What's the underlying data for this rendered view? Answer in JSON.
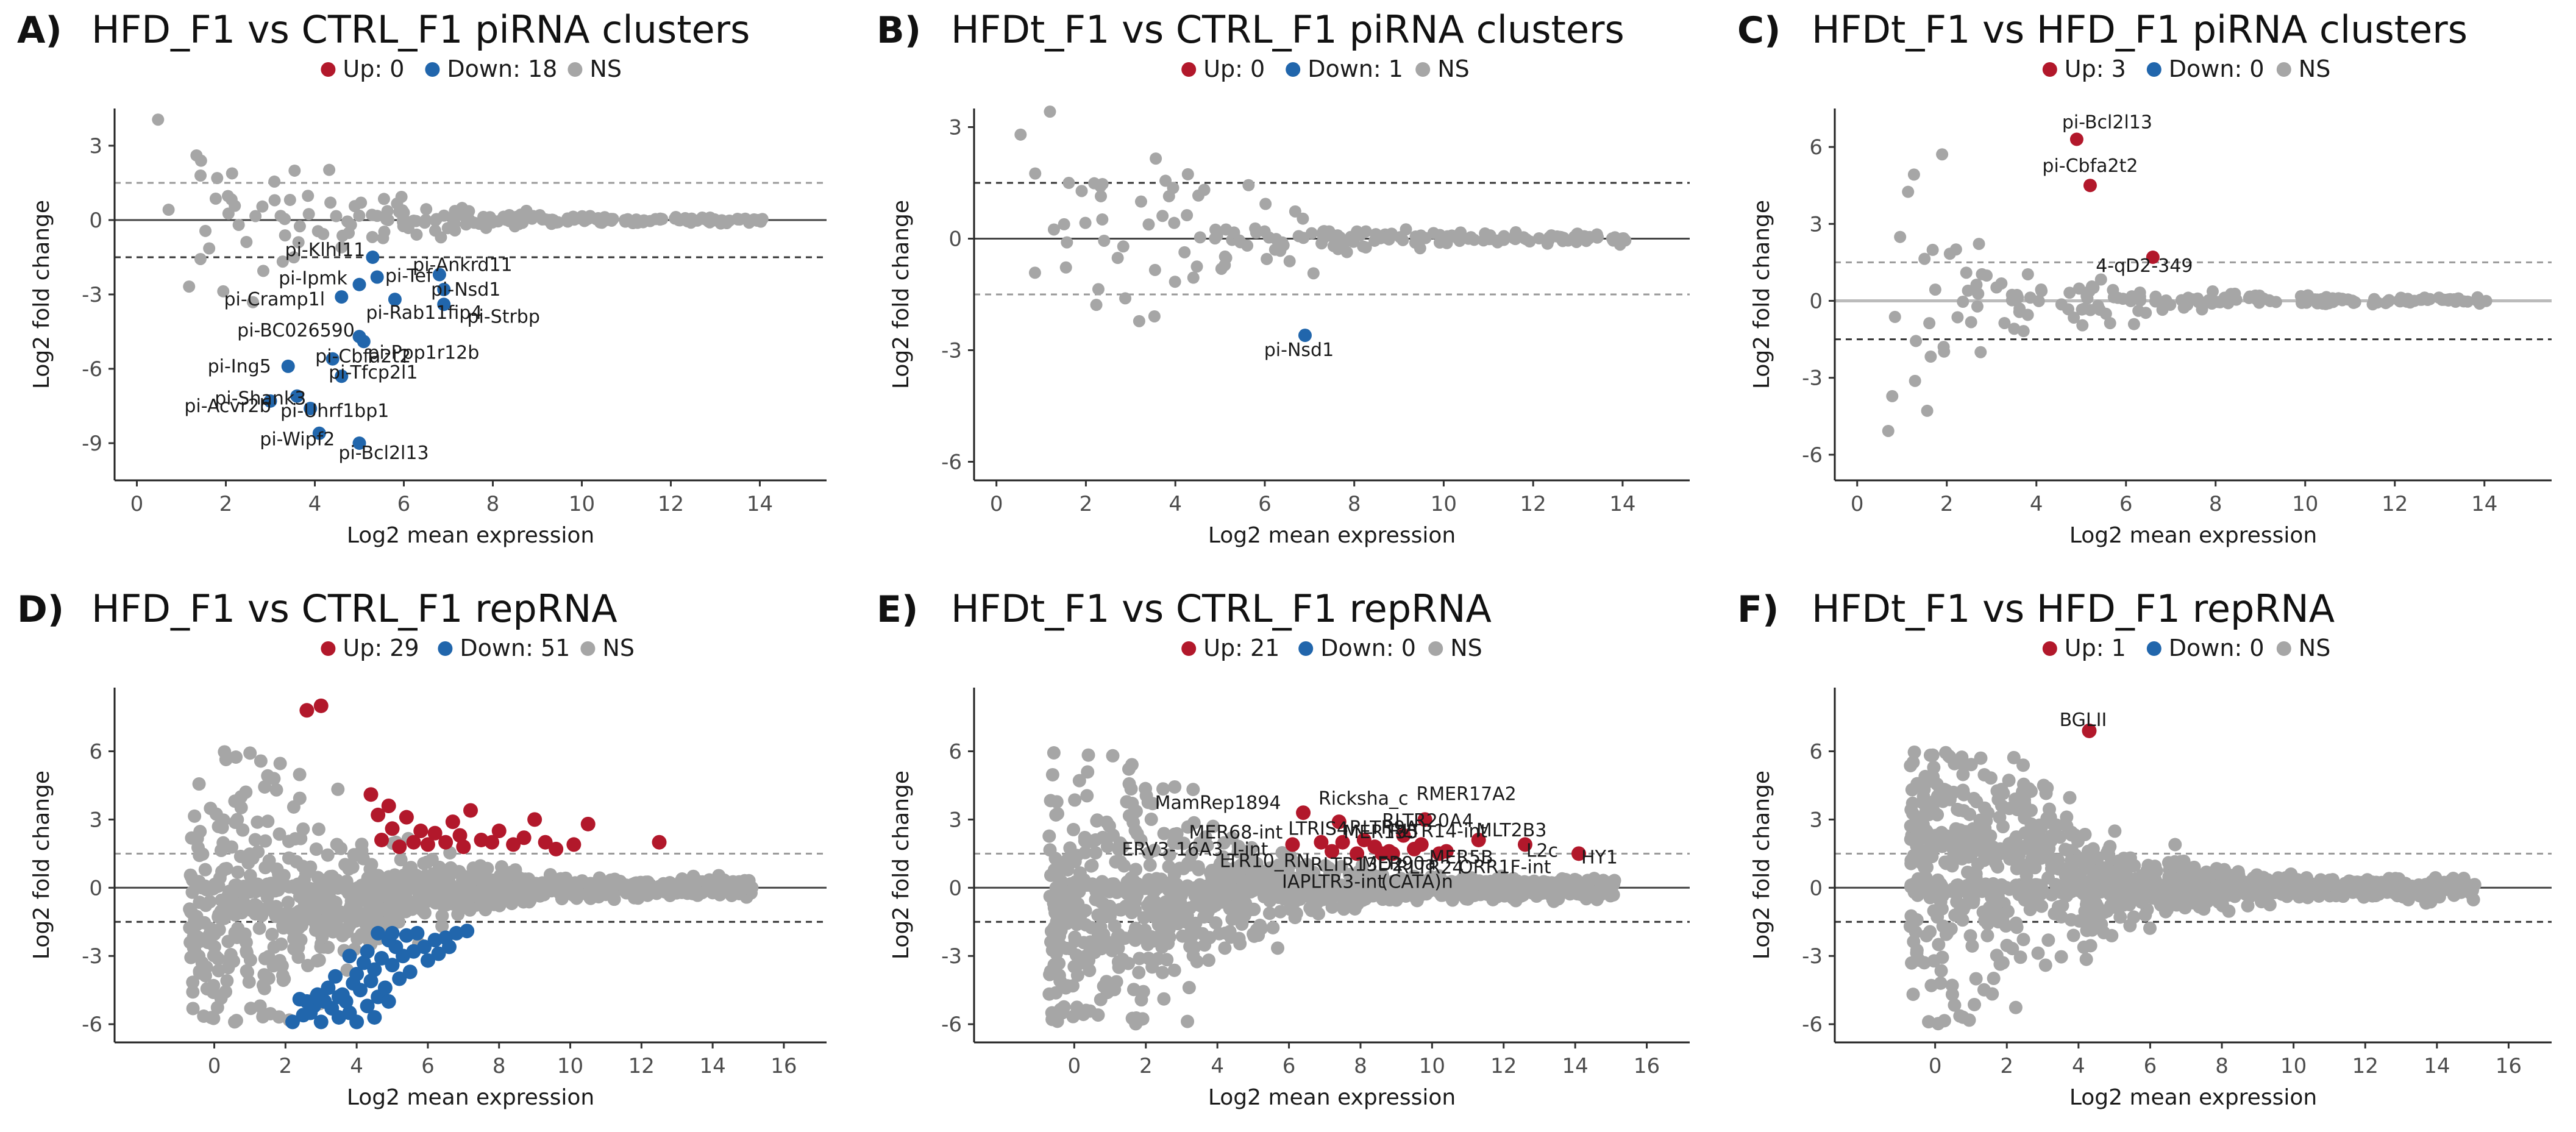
{
  "colors": {
    "up": "#b2182b",
    "down": "#2166ac",
    "ns": "#a6a6a6",
    "zero_line": "#444444",
    "thr_gray": "#9a9a9a",
    "thr_dark": "#333333"
  },
  "axis_titles": {
    "x": "Log2 mean expression",
    "y": "Log2 fold change"
  },
  "legend_ns": "NS",
  "chart_data": [
    {
      "id": "A",
      "letter": "A)",
      "type": "scatter",
      "title": "HFD_F1 vs CTRL_F1 piRNA clusters",
      "legend": {
        "up": "Up: 0",
        "down": "Down: 18"
      },
      "xlim": [
        -0.5,
        15.5
      ],
      "ylim": [
        -10.5,
        4.5
      ],
      "xticks": [
        0,
        2,
        4,
        6,
        8,
        10,
        12,
        14
      ],
      "yticks": [
        3,
        0,
        -3,
        -6,
        -9
      ],
      "thresholds": [
        1.5,
        -1.5
      ],
      "threshold_styles": [
        "gray",
        "dark"
      ],
      "ns_seed": 11,
      "ns_count": 210,
      "ns_style": "pirna",
      "up": [],
      "down": [
        {
          "x": 5.3,
          "y": -1.5,
          "label": "pi-Klhl11"
        },
        {
          "x": 6.8,
          "y": -2.2,
          "label": "pi-Ankrd11"
        },
        {
          "x": 5.0,
          "y": -2.6,
          "label": "pi-Ipmk"
        },
        {
          "x": 5.4,
          "y": -2.3,
          "label": "pi-Tef"
        },
        {
          "x": 6.9,
          "y": -2.8,
          "label": "pi-Nsd1"
        },
        {
          "x": 4.6,
          "y": -3.1,
          "label": "pi-Cramp1l"
        },
        {
          "x": 5.8,
          "y": -3.2,
          "label": "pi-Rab11fip4"
        },
        {
          "x": 6.9,
          "y": -3.4,
          "label": "pi-Strbp"
        },
        {
          "x": 5.0,
          "y": -4.7,
          "label": "pi-BC026590"
        },
        {
          "x": 5.1,
          "y": -4.9,
          "label": "pi-Ppp1r12b"
        },
        {
          "x": 4.4,
          "y": -5.6,
          "label": "pi-Cbfa2t2"
        },
        {
          "x": 3.4,
          "y": -5.9,
          "label": "pi-Ing5"
        },
        {
          "x": 4.6,
          "y": -6.3,
          "label": "pi-Tfcp2l1"
        },
        {
          "x": 3.6,
          "y": -7.1,
          "label": "pi-Shank3"
        },
        {
          "x": 3.0,
          "y": -7.3,
          "label": "pi-Acvr2b"
        },
        {
          "x": 3.9,
          "y": -7.6,
          "label": "pi-Uhrf1bp1"
        },
        {
          "x": 4.1,
          "y": -8.6,
          "label": "pi-Wipf2"
        },
        {
          "x": 5.0,
          "y": -9.0,
          "label": "pi-Bcl2l13"
        }
      ]
    },
    {
      "id": "B",
      "letter": "B)",
      "type": "scatter",
      "title": "HFDt_F1 vs CTRL_F1 piRNA clusters",
      "legend": {
        "up": "Up: 0",
        "down": "Down: 1"
      },
      "xlim": [
        -0.5,
        15.5
      ],
      "ylim": [
        -6.5,
        3.5
      ],
      "xticks": [
        0,
        2,
        4,
        6,
        8,
        10,
        12,
        14
      ],
      "yticks": [
        3,
        0,
        -3,
        -6
      ],
      "thresholds": [
        1.5,
        -1.5
      ],
      "threshold_styles": [
        "dark",
        "gray"
      ],
      "ns_seed": 23,
      "ns_count": 190,
      "ns_style": "pirna",
      "up": [],
      "down": [
        {
          "x": 6.9,
          "y": -2.6,
          "label": "pi-Nsd1"
        }
      ]
    },
    {
      "id": "C",
      "letter": "C)",
      "type": "scatter",
      "title": "HFDt_F1 vs HFD_F1 piRNA clusters",
      "legend": {
        "up": "Up: 3",
        "down": "Down: 0"
      },
      "xlim": [
        -0.5,
        15.5
      ],
      "ylim": [
        -7.0,
        7.5
      ],
      "xticks": [
        0,
        2,
        4,
        6,
        8,
        10,
        12,
        14
      ],
      "yticks": [
        6,
        3,
        0,
        -3,
        -6
      ],
      "thresholds": [
        1.5,
        -1.5
      ],
      "threshold_styles": [
        "gray",
        "dark"
      ],
      "ns_seed": 37,
      "ns_count": 190,
      "ns_style": "pirna",
      "up": [
        {
          "x": 4.9,
          "y": 6.3,
          "label": "pi-Bcl2l13"
        },
        {
          "x": 5.2,
          "y": 4.5,
          "label": "pi-Cbfa2t2"
        },
        {
          "x": 6.6,
          "y": 1.7,
          "label": "4-qD2-349"
        }
      ],
      "down": []
    },
    {
      "id": "D",
      "letter": "D)",
      "type": "scatter",
      "title": "HFD_F1 vs CTRL_F1 repRNA",
      "legend": {
        "up": "Up: 29",
        "down": "Down: 51"
      },
      "xlim": [
        -2.8,
        17.2
      ],
      "ylim": [
        -6.8,
        8.8
      ],
      "xticks": [
        0,
        2,
        4,
        6,
        8,
        10,
        12,
        14,
        16
      ],
      "yticks": [
        6,
        3,
        0,
        -3,
        -6
      ],
      "thresholds": [
        1.5,
        -1.5
      ],
      "threshold_styles": [
        "gray",
        "dark"
      ],
      "ns_seed": 51,
      "ns_count": 1000,
      "ns_style": "rep_d",
      "up": [
        {
          "x": 2.6,
          "y": 7.8
        },
        {
          "x": 3.0,
          "y": 8.0
        },
        {
          "x": 4.4,
          "y": 4.1
        },
        {
          "x": 4.9,
          "y": 3.6
        },
        {
          "x": 4.6,
          "y": 3.2
        },
        {
          "x": 5.4,
          "y": 3.1
        },
        {
          "x": 5.0,
          "y": 2.6
        },
        {
          "x": 5.8,
          "y": 2.5
        },
        {
          "x": 6.2,
          "y": 2.4
        },
        {
          "x": 5.6,
          "y": 2.0
        },
        {
          "x": 6.5,
          "y": 2.0
        },
        {
          "x": 6.9,
          "y": 2.3
        },
        {
          "x": 7.2,
          "y": 3.4
        },
        {
          "x": 7.5,
          "y": 2.1
        },
        {
          "x": 6.0,
          "y": 1.9
        },
        {
          "x": 7.8,
          "y": 2.0
        },
        {
          "x": 8.0,
          "y": 2.5
        },
        {
          "x": 8.4,
          "y": 1.9
        },
        {
          "x": 8.7,
          "y": 2.2
        },
        {
          "x": 9.0,
          "y": 3.0
        },
        {
          "x": 9.3,
          "y": 2.0
        },
        {
          "x": 9.6,
          "y": 1.7
        },
        {
          "x": 10.1,
          "y": 1.9
        },
        {
          "x": 10.5,
          "y": 2.8
        },
        {
          "x": 7.0,
          "y": 1.8
        },
        {
          "x": 5.2,
          "y": 1.8
        },
        {
          "x": 12.5,
          "y": 2.0
        },
        {
          "x": 4.7,
          "y": 2.1
        },
        {
          "x": 6.7,
          "y": 2.9
        }
      ],
      "down": [
        {
          "x": 2.5,
          "y": -5.6
        },
        {
          "x": 3.0,
          "y": -5.9
        },
        {
          "x": 3.5,
          "y": -5.7
        },
        {
          "x": 4.0,
          "y": -5.9
        },
        {
          "x": 4.5,
          "y": -5.7
        },
        {
          "x": 2.8,
          "y": -5.2
        },
        {
          "x": 3.3,
          "y": -5.3
        },
        {
          "x": 4.3,
          "y": -5.2
        },
        {
          "x": 3.8,
          "y": -5.5
        },
        {
          "x": 2.2,
          "y": -5.9
        },
        {
          "x": 2.6,
          "y": -5.0
        },
        {
          "x": 3.1,
          "y": -5.0
        },
        {
          "x": 3.6,
          "y": -4.7
        },
        {
          "x": 4.1,
          "y": -4.5
        },
        {
          "x": 4.6,
          "y": -4.8
        },
        {
          "x": 3.2,
          "y": -4.4
        },
        {
          "x": 3.9,
          "y": -4.2
        },
        {
          "x": 4.4,
          "y": -4.1
        },
        {
          "x": 4.0,
          "y": -3.8
        },
        {
          "x": 4.5,
          "y": -3.6
        },
        {
          "x": 5.0,
          "y": -3.4
        },
        {
          "x": 4.7,
          "y": -3.1
        },
        {
          "x": 5.3,
          "y": -3.0
        },
        {
          "x": 5.6,
          "y": -2.8
        },
        {
          "x": 5.1,
          "y": -2.6
        },
        {
          "x": 5.9,
          "y": -2.6
        },
        {
          "x": 6.2,
          "y": -2.3
        },
        {
          "x": 6.5,
          "y": -2.2
        },
        {
          "x": 6.8,
          "y": -2.0
        },
        {
          "x": 7.1,
          "y": -1.9
        },
        {
          "x": 5.7,
          "y": -2.0
        },
        {
          "x": 4.9,
          "y": -2.3
        },
        {
          "x": 4.3,
          "y": -2.8
        },
        {
          "x": 4.2,
          "y": -3.3
        },
        {
          "x": 3.8,
          "y": -3.0
        },
        {
          "x": 4.8,
          "y": -4.4
        },
        {
          "x": 5.2,
          "y": -4.0
        },
        {
          "x": 3.4,
          "y": -3.9
        },
        {
          "x": 2.9,
          "y": -4.7
        },
        {
          "x": 2.4,
          "y": -4.9
        },
        {
          "x": 3.7,
          "y": -5.0
        },
        {
          "x": 5.5,
          "y": -3.7
        },
        {
          "x": 6.0,
          "y": -3.2
        },
        {
          "x": 6.3,
          "y": -2.9
        },
        {
          "x": 4.6,
          "y": -2.0
        },
        {
          "x": 5.4,
          "y": -2.1
        },
        {
          "x": 3.5,
          "y": -4.8
        },
        {
          "x": 2.7,
          "y": -5.5
        },
        {
          "x": 4.9,
          "y": -5.0
        },
        {
          "x": 5.0,
          "y": -2.0
        },
        {
          "x": 6.6,
          "y": -2.6
        }
      ]
    },
    {
      "id": "E",
      "letter": "E)",
      "type": "scatter",
      "title": "HFDt_F1 vs CTRL_F1 repRNA",
      "legend": {
        "up": "Up: 21",
        "down": "Down: 0"
      },
      "xlim": [
        -2.8,
        17.2
      ],
      "ylim": [
        -6.8,
        8.8
      ],
      "xticks": [
        0,
        2,
        4,
        6,
        8,
        10,
        12,
        14,
        16
      ],
      "yticks": [
        6,
        3,
        0,
        -3,
        -6
      ],
      "thresholds": [
        1.5,
        -1.5
      ],
      "threshold_styles": [
        "gray",
        "dark"
      ],
      "ns_seed": 67,
      "ns_count": 1100,
      "ns_style": "rep_e",
      "up": [
        {
          "x": 6.4,
          "y": 3.3,
          "label": "MamRep1894"
        },
        {
          "x": 7.4,
          "y": 2.9,
          "label": "Ricksha_c"
        },
        {
          "x": 9.8,
          "y": 3.0,
          "label": "RMER17A2"
        },
        {
          "x": 9.2,
          "y": 2.3,
          "label": "RLTR20A4"
        },
        {
          "x": 11.3,
          "y": 2.1,
          "label": "MLT2B3"
        },
        {
          "x": 6.9,
          "y": 2.0,
          "label": "MER68-int"
        },
        {
          "x": 7.5,
          "y": 2.0,
          "label": "LTRIS4"
        },
        {
          "x": 8.1,
          "y": 2.1,
          "label": "RLTR9A"
        },
        {
          "x": 8.4,
          "y": 1.8,
          "label": "MER135"
        },
        {
          "x": 9.7,
          "y": 1.9,
          "label": "RLTR14-int"
        },
        {
          "x": 6.1,
          "y": 1.9,
          "label": "ERV3-16A3_I-int"
        },
        {
          "x": 7.2,
          "y": 1.6,
          "label": "LTR10_RN"
        },
        {
          "x": 7.9,
          "y": 1.5,
          "label": "RLTR13D2"
        },
        {
          "x": 8.8,
          "y": 1.6,
          "label": "MER90a"
        },
        {
          "x": 10.2,
          "y": 1.5,
          "label": "MER5B"
        },
        {
          "x": 9.5,
          "y": 1.7,
          "label": "RLTR24"
        },
        {
          "x": 12.6,
          "y": 1.9,
          "label": "L2c"
        },
        {
          "x": 14.1,
          "y": 1.5,
          "label": "HY1"
        },
        {
          "x": 8.6,
          "y": 1.5,
          "label": "IAPLTR3-int"
        },
        {
          "x": 8.9,
          "y": 1.5,
          "label": "(CATA)n"
        },
        {
          "x": 10.4,
          "y": 1.6,
          "label": "ORR1F-int"
        }
      ],
      "down": []
    },
    {
      "id": "F",
      "letter": "F)",
      "type": "scatter",
      "title": "HFDt_F1 vs HFD_F1 repRNA",
      "legend": {
        "up": "Up: 1",
        "down": "Down: 0"
      },
      "xlim": [
        -2.8,
        17.2
      ],
      "ylim": [
        -6.8,
        8.8
      ],
      "xticks": [
        0,
        2,
        4,
        6,
        8,
        10,
        12,
        14,
        16
      ],
      "yticks": [
        6,
        3,
        0,
        -3,
        -6
      ],
      "thresholds": [
        1.5,
        -1.5
      ],
      "threshold_styles": [
        "gray",
        "dark"
      ],
      "ns_seed": 83,
      "ns_count": 1150,
      "ns_style": "rep_f",
      "up": [
        {
          "x": 4.3,
          "y": 6.9,
          "label": "BGLII"
        }
      ],
      "down": []
    }
  ]
}
